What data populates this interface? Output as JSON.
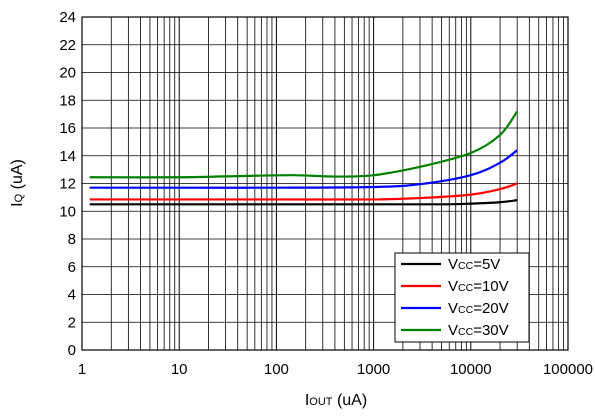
{
  "chart_data": {
    "type": "line",
    "title": "",
    "xlabel": {
      "main": "I",
      "sub": "OUT",
      "unit": " (uA)"
    },
    "ylabel": {
      "main": "I",
      "sub": "Q",
      "unit": " (uA)"
    },
    "xscale": "log",
    "xlim": [
      1,
      100000
    ],
    "ylim": [
      0,
      24
    ],
    "xticks": [
      "1",
      "10",
      "100",
      "1000",
      "10000",
      "100000"
    ],
    "yticks": [
      "0",
      "2",
      "4",
      "6",
      "8",
      "10",
      "12",
      "14",
      "16",
      "18",
      "20",
      "22",
      "24"
    ],
    "grid": true,
    "legend_position": "bottom-right",
    "series": [
      {
        "name": "Vcc=5V",
        "legend": {
          "main": "V",
          "sub": "CC",
          "rest": "=5V"
        },
        "color": "#000000",
        "x": [
          1.2,
          10,
          100,
          1000,
          5000,
          10000,
          20000,
          30000
        ],
        "y": [
          10.5,
          10.5,
          10.5,
          10.5,
          10.5,
          10.55,
          10.65,
          10.8
        ]
      },
      {
        "name": "Vcc=10V",
        "legend": {
          "main": "V",
          "sub": "CC",
          "rest": "=10V"
        },
        "color": "#ff0000",
        "x": [
          1.2,
          10,
          100,
          1000,
          3000,
          10000,
          20000,
          30000
        ],
        "y": [
          10.85,
          10.85,
          10.85,
          10.85,
          10.95,
          11.2,
          11.6,
          12.0
        ]
      },
      {
        "name": "Vcc=20V",
        "legend": {
          "main": "V",
          "sub": "CC",
          "rest": "=20V"
        },
        "color": "#0000ff",
        "x": [
          1.2,
          10,
          100,
          1000,
          3000,
          10000,
          20000,
          30000
        ],
        "y": [
          11.7,
          11.7,
          11.7,
          11.75,
          11.95,
          12.6,
          13.5,
          14.4
        ]
      },
      {
        "name": "Vcc=30V",
        "legend": {
          "main": "V",
          "sub": "CC",
          "rest": "=30V"
        },
        "color": "#008000",
        "x": [
          1.2,
          10,
          50,
          150,
          400,
          1000,
          3000,
          10000,
          20000,
          30000
        ],
        "y": [
          12.45,
          12.45,
          12.55,
          12.6,
          12.5,
          12.6,
          13.2,
          14.2,
          15.5,
          17.2
        ]
      }
    ]
  }
}
